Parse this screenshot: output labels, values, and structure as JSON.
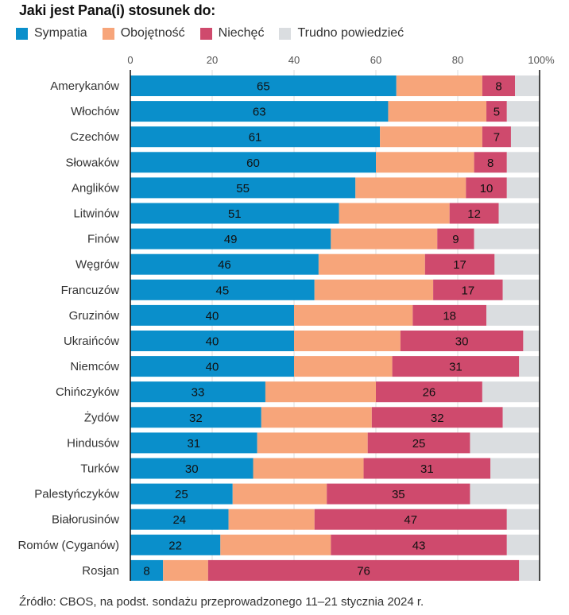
{
  "chart_data": {
    "type": "bar",
    "orientation": "horizontal",
    "stacked": true,
    "title": "Jaki jest Pana(i) stosunek do:",
    "xlabel": "",
    "ylabel": "",
    "xlim": [
      0,
      100
    ],
    "x_ticks": [
      "0",
      "20",
      "40",
      "60",
      "80",
      "100%"
    ],
    "x_tick_values": [
      0,
      20,
      40,
      60,
      80,
      100
    ],
    "grid": true,
    "legend_position": "top-left",
    "categories": [
      "Amerykanów",
      "Włochów",
      "Czechów",
      "Słowaków",
      "Anglików",
      "Litwinów",
      "Finów",
      "Węgrów",
      "Francuzów",
      "Gruzinów",
      "Ukraińców",
      "Niemców",
      "Chińczyków",
      "Żydów",
      "Hindusów",
      "Turków",
      "Palestyńczyków",
      "Białorusinów",
      "Romów (Cyganów)",
      "Rosjan"
    ],
    "series": [
      {
        "name": "Sympatia",
        "color": "#0a8fcb",
        "labeled": true,
        "values": [
          65,
          63,
          61,
          60,
          55,
          51,
          49,
          46,
          45,
          40,
          40,
          40,
          33,
          32,
          31,
          30,
          25,
          24,
          22,
          8
        ]
      },
      {
        "name": "Obojętność",
        "color": "#f7a57a",
        "labeled": false,
        "values": [
          21,
          24,
          25,
          24,
          27,
          27,
          26,
          26,
          29,
          29,
          26,
          24,
          27,
          27,
          27,
          27,
          23,
          21,
          27,
          11
        ]
      },
      {
        "name": "Niechęć",
        "color": "#cf4a6d",
        "labeled": true,
        "values": [
          8,
          5,
          7,
          8,
          10,
          12,
          9,
          17,
          17,
          18,
          30,
          31,
          26,
          32,
          25,
          31,
          35,
          47,
          43,
          76
        ]
      },
      {
        "name": "Trudno powiedzieć",
        "color": "#dadde0",
        "labeled": false,
        "values": [
          6,
          8,
          7,
          8,
          8,
          10,
          16,
          11,
          9,
          13,
          4,
          5,
          14,
          9,
          17,
          12,
          17,
          8,
          8,
          5
        ]
      }
    ]
  },
  "footer": {
    "source": "Źródło: CBOS, na podst. sondażu przeprowadzonego 11–21 stycznia 2024 r."
  }
}
